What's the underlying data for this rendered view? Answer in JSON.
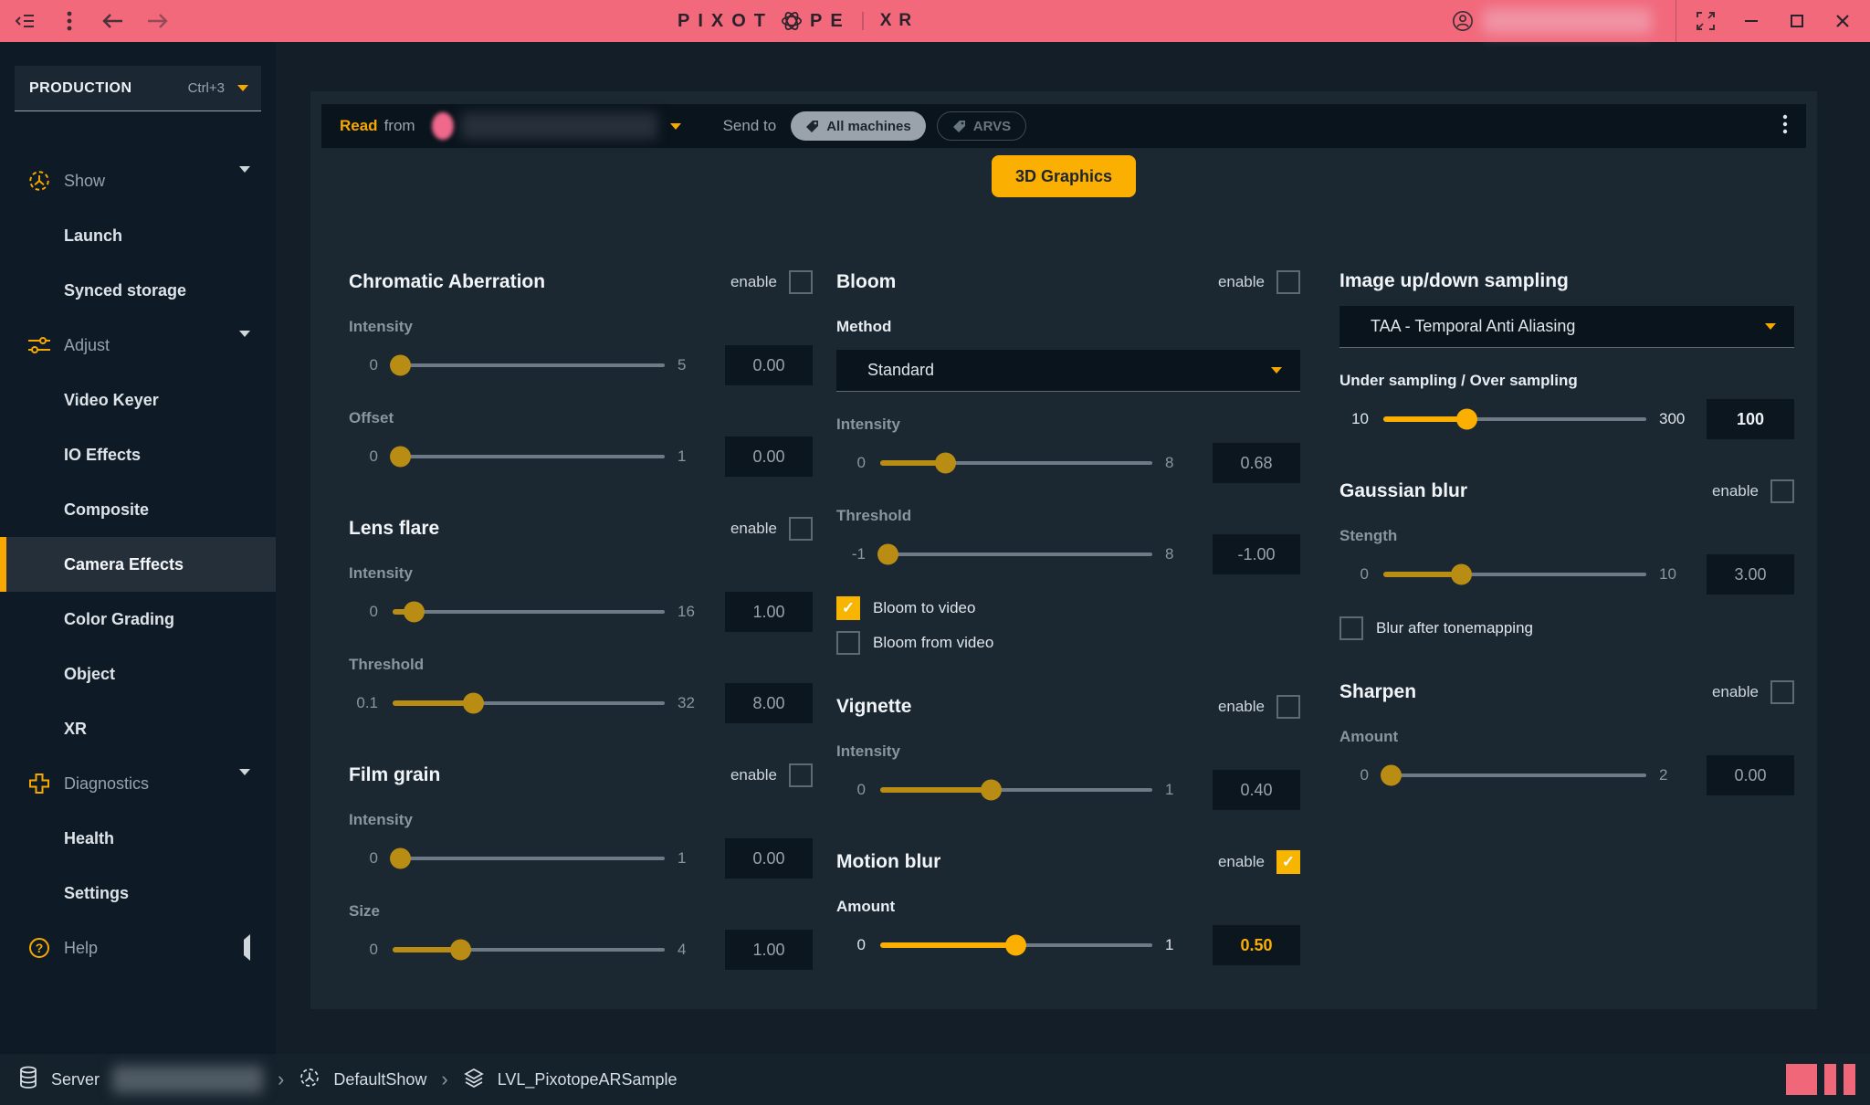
{
  "topbar": {
    "logo_prefix": "PIXOT",
    "logo_suffix": "PE",
    "product": "XR"
  },
  "sidebar": {
    "mode": "PRODUCTION",
    "mode_shortcut": "Ctrl+3",
    "items": [
      {
        "label": "Show",
        "level": "top",
        "icon": "show-icon",
        "caret": "down"
      },
      {
        "label": "Launch",
        "level": "sub"
      },
      {
        "label": "Synced storage",
        "level": "sub"
      },
      {
        "label": "Adjust",
        "level": "top",
        "icon": "adjust-icon",
        "caret": "down"
      },
      {
        "label": "Video Keyer",
        "level": "sub"
      },
      {
        "label": "IO Effects",
        "level": "sub"
      },
      {
        "label": "Composite",
        "level": "sub"
      },
      {
        "label": "Camera Effects",
        "level": "sub",
        "selected": true
      },
      {
        "label": "Color Grading",
        "level": "sub"
      },
      {
        "label": "Object",
        "level": "sub"
      },
      {
        "label": "XR",
        "level": "sub"
      },
      {
        "label": "Diagnostics",
        "level": "top",
        "icon": "diagnostics-icon",
        "caret": "down"
      },
      {
        "label": "Health",
        "level": "sub"
      },
      {
        "label": "Settings",
        "level": "sub"
      },
      {
        "label": "Help",
        "level": "top",
        "icon": "help-icon",
        "caret": "left"
      }
    ]
  },
  "toolbar": {
    "read_label": "Read",
    "from_label": "from",
    "send_to_label": "Send to",
    "tags": [
      {
        "label": "All machines",
        "active": true
      },
      {
        "label": "ARVS",
        "active": false
      }
    ]
  },
  "view_button": "3D Graphics",
  "panels": [
    {
      "sections": [
        {
          "title": "Chromatic Aberration",
          "enable": {
            "label": "enable",
            "checked": false
          },
          "rows": [
            {
              "type": "slider",
              "label": "Intensity",
              "min": "0",
              "max": "5",
              "value": "0.00",
              "fill": 3
            },
            {
              "type": "slider",
              "label": "Offset",
              "min": "0",
              "max": "1",
              "value": "0.00",
              "fill": 3
            }
          ]
        },
        {
          "title": "Lens flare",
          "enable": {
            "label": "enable",
            "checked": false
          },
          "rows": [
            {
              "type": "slider",
              "label": "Intensity",
              "min": "0",
              "max": "16",
              "value": "1.00",
              "fill": 8
            },
            {
              "type": "slider",
              "label": "Threshold",
              "min": "0.1",
              "max": "32",
              "value": "8.00",
              "fill": 30
            }
          ]
        },
        {
          "title": "Film grain",
          "enable": {
            "label": "enable",
            "checked": false
          },
          "rows": [
            {
              "type": "slider",
              "label": "Intensity",
              "min": "0",
              "max": "1",
              "value": "0.00",
              "fill": 3
            },
            {
              "type": "slider",
              "label": "Size",
              "min": "0",
              "max": "4",
              "value": "1.00",
              "fill": 25
            }
          ]
        }
      ]
    },
    {
      "sections": [
        {
          "title": "Bloom",
          "enable": {
            "label": "enable",
            "checked": false
          },
          "rows": [
            {
              "type": "label",
              "text": "Method",
              "bright": true
            },
            {
              "type": "select",
              "value": "Standard"
            },
            {
              "type": "slider",
              "label": "Intensity",
              "min": "0",
              "max": "8",
              "value": "0.68",
              "fill": 24
            },
            {
              "type": "slider",
              "label": "Threshold",
              "min": "-1",
              "max": "8",
              "value": "-1.00",
              "fill": 3
            },
            {
              "type": "check",
              "label": "Bloom to video",
              "checked": true
            },
            {
              "type": "check",
              "label": "Bloom from video",
              "checked": false
            }
          ]
        },
        {
          "title": "Vignette",
          "enable": {
            "label": "enable",
            "checked": false
          },
          "rows": [
            {
              "type": "slider",
              "label": "Intensity",
              "min": "0",
              "max": "1",
              "value": "0.40",
              "fill": 41
            }
          ]
        },
        {
          "title": "Motion blur",
          "enable": {
            "label": "enable",
            "checked": true
          },
          "rows": [
            {
              "type": "slider",
              "label": "Amount",
              "min": "0",
              "max": "1",
              "value": "0.50",
              "fill": 50,
              "bright": true,
              "label_bright": true,
              "value_style": "accent"
            }
          ]
        }
      ]
    },
    {
      "sections": [
        {
          "title": "Image up/down sampling",
          "rows": [
            {
              "type": "select",
              "value": "TAA - Temporal Anti Aliasing"
            },
            {
              "type": "slider",
              "label": "Under sampling / Over sampling",
              "min": "10",
              "max": "300",
              "value": "100",
              "fill": 32,
              "bright": true,
              "label_bright": true,
              "value_style": "bright"
            }
          ]
        },
        {
          "title": "Gaussian blur",
          "enable": {
            "label": "enable",
            "checked": false
          },
          "rows": [
            {
              "type": "slider",
              "label": "Stength",
              "min": "0",
              "max": "10",
              "value": "3.00",
              "fill": 30
            },
            {
              "type": "check",
              "label": "Blur after tonemapping",
              "checked": false
            }
          ]
        },
        {
          "title": "Sharpen",
          "enable": {
            "label": "enable",
            "checked": false
          },
          "rows": [
            {
              "type": "slider",
              "label": "Amount",
              "min": "0",
              "max": "2",
              "value": "0.00",
              "fill": 3
            }
          ]
        }
      ]
    }
  ],
  "statusbar": {
    "server_label": "Server",
    "crumb_show": "DefaultShow",
    "crumb_level": "LVL_PixotopeARSample"
  },
  "colors": {
    "topbar": "#F2697C",
    "accent": "#F7A800",
    "slider_dim": "#B98D14",
    "slider_bright": "#FBAF00"
  }
}
